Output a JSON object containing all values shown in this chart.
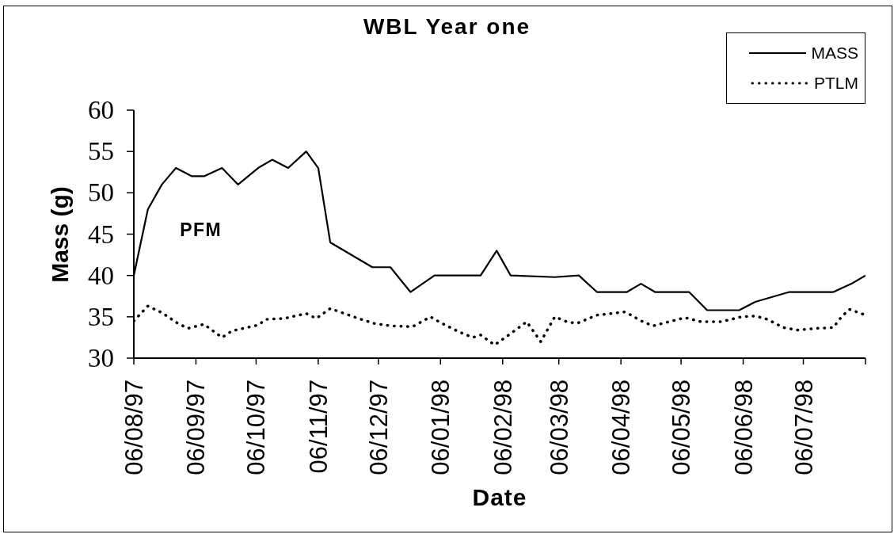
{
  "chart_data": {
    "type": "line",
    "title": "WBL Year one",
    "xlabel": "Date",
    "ylabel": "Mass (g)",
    "annotations": [
      "PFM"
    ],
    "xlim": [
      "1997-08-06",
      "1998-08-06"
    ],
    "xticks": [
      {
        "value": "1997-08-06",
        "label": "06/08/97"
      },
      {
        "value": "1997-09-06",
        "label": "06/09/97"
      },
      {
        "value": "1997-10-06",
        "label": "06/10/97"
      },
      {
        "value": "1997-11-06",
        "label": "06/11/97"
      },
      {
        "value": "1997-12-06",
        "label": "06/12/97"
      },
      {
        "value": "1998-01-06",
        "label": "06/01/98"
      },
      {
        "value": "1998-02-06",
        "label": "06/02/98"
      },
      {
        "value": "1998-03-06",
        "label": "06/03/98"
      },
      {
        "value": "1998-04-06",
        "label": "06/04/98"
      },
      {
        "value": "1998-05-06",
        "label": "06/05/98"
      },
      {
        "value": "1998-06-06",
        "label": "06/06/98"
      },
      {
        "value": "1998-07-06",
        "label": "06/07/98"
      },
      {
        "value": "1998-08-06",
        "label": null
      }
    ],
    "ylim": [
      30,
      60
    ],
    "yticks": [
      30,
      35,
      40,
      45,
      50,
      55,
      60
    ],
    "legend": "top right",
    "series": [
      {
        "name": "MASS",
        "color": "#000000",
        "line_style": "solid",
        "x": [
          "1997-08-06",
          "1997-08-13",
          "1997-08-20",
          "1997-08-27",
          "1997-09-04",
          "1997-09-10",
          "1997-09-19",
          "1997-09-27",
          "1997-10-07",
          "1997-10-14",
          "1997-10-22",
          "1997-10-31",
          "1997-11-06",
          "1997-11-12",
          "1997-12-03",
          "1997-12-12",
          "1997-12-22",
          "1998-01-03",
          "1998-01-26",
          "1998-02-03",
          "1998-02-10",
          "1998-03-04",
          "1998-03-16",
          "1998-03-25",
          "1998-04-09",
          "1998-04-16",
          "1998-04-23",
          "1998-05-10",
          "1998-05-19",
          "1998-06-04",
          "1998-06-12",
          "1998-06-29",
          "1998-07-21",
          "1998-07-30",
          "1998-08-06"
        ],
        "values": [
          40,
          48,
          51,
          53,
          52,
          52,
          53,
          51,
          53,
          54,
          53,
          55,
          53,
          44,
          41,
          41,
          38,
          40,
          40,
          43,
          40,
          39.8,
          40,
          38,
          38,
          39,
          38,
          38,
          35.8,
          35.8,
          36.8,
          38,
          38,
          39,
          40
        ]
      },
      {
        "name": "PTLM",
        "color": "#000000",
        "line_style": "dotted",
        "x": [
          "1997-08-06",
          "1997-08-13",
          "1997-08-20",
          "1997-08-28",
          "1997-09-02",
          "1997-09-10",
          "1997-09-19",
          "1997-09-24",
          "1997-10-07",
          "1997-10-11",
          "1997-10-20",
          "1997-10-31",
          "1997-11-05",
          "1997-11-12",
          "1997-11-26",
          "1997-12-04",
          "1997-12-12",
          "1997-12-23",
          "1998-01-01",
          "1998-01-06",
          "1998-01-15",
          "1998-01-22",
          "1998-01-26",
          "1998-02-02",
          "1998-02-09",
          "1998-02-18",
          "1998-02-25",
          "1998-03-04",
          "1998-03-10",
          "1998-03-15",
          "1998-03-25",
          "1998-04-08",
          "1998-04-17",
          "1998-04-22",
          "1998-05-08",
          "1998-05-16",
          "1998-05-26",
          "1998-06-05",
          "1998-06-12",
          "1998-06-18",
          "1998-06-26",
          "1998-07-03",
          "1998-07-12",
          "1998-07-21",
          "1998-07-25",
          "1998-07-29",
          "1998-08-05"
        ],
        "values": [
          34.5,
          36.3,
          35.5,
          34.2,
          33.6,
          34.1,
          32.5,
          33.3,
          34.0,
          34.7,
          34.8,
          35.4,
          34.8,
          36.0,
          34.8,
          34.2,
          33.9,
          33.8,
          35.0,
          34.3,
          33.2,
          32.5,
          32.8,
          31.6,
          32.8,
          34.4,
          32.0,
          35.0,
          34.4,
          34.2,
          35.2,
          35.6,
          34.4,
          33.9,
          34.9,
          34.4,
          34.4,
          35.0,
          35.1,
          34.7,
          33.7,
          33.4,
          33.6,
          33.7,
          35.0,
          35.9,
          35.3
        ]
      }
    ]
  }
}
